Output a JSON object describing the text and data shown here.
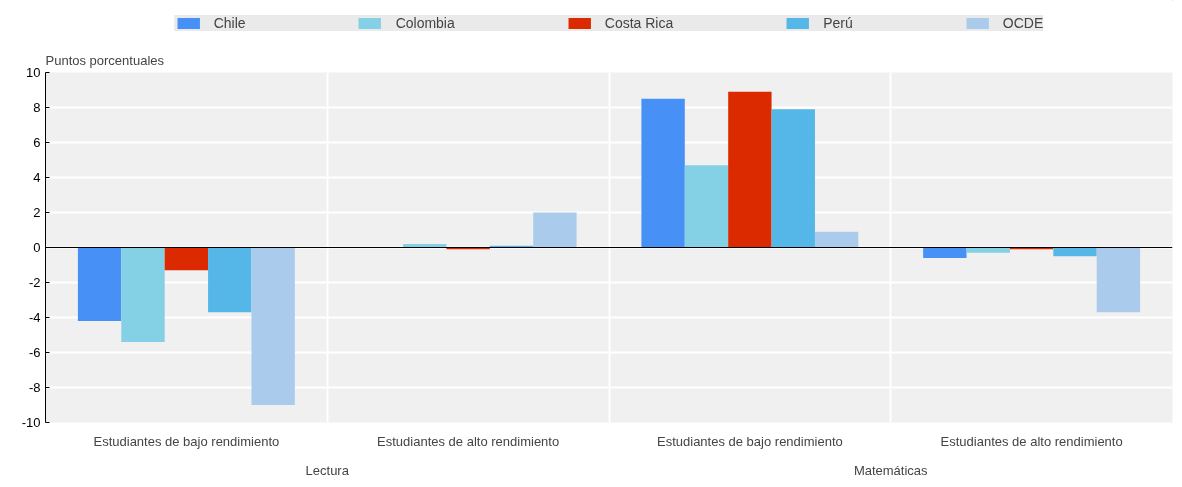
{
  "chart_data": {
    "type": "bar",
    "ylabel": "Puntos porcentuales",
    "categories": [
      "Estudiantes de bajo rendimiento",
      "Estudiantes de alto rendimiento",
      "Estudiantes de bajo rendimiento",
      "Estudiantes de alto rendimiento"
    ],
    "series": [
      {
        "name": "Chile",
        "color": "#4790f5",
        "values": [
          -4.2,
          null,
          8.5,
          -0.6
        ]
      },
      {
        "name": "Colombia",
        "color": "#84d0e5",
        "values": [
          -5.4,
          0.2,
          4.7,
          -0.3
        ]
      },
      {
        "name": "Costa Rica",
        "color": "#dc2a00",
        "values": [
          -1.3,
          -0.1,
          8.9,
          -0.1
        ]
      },
      {
        "name": "Perú",
        "color": "#55b7e7",
        "values": [
          -3.7,
          0.1,
          7.9,
          -0.5
        ]
      },
      {
        "name": "OCDE",
        "color": "#abcbec",
        "values": [
          -9.0,
          2.0,
          0.9,
          -3.7
        ]
      }
    ],
    "annotations": [
      "Lectura",
      "Matemáticas"
    ],
    "ylim": [
      -10,
      10
    ],
    "yticks": [
      -10,
      -8,
      -6,
      -4,
      -2,
      0,
      2,
      4,
      6,
      8,
      10
    ],
    "grid": true,
    "legend": "top"
  }
}
